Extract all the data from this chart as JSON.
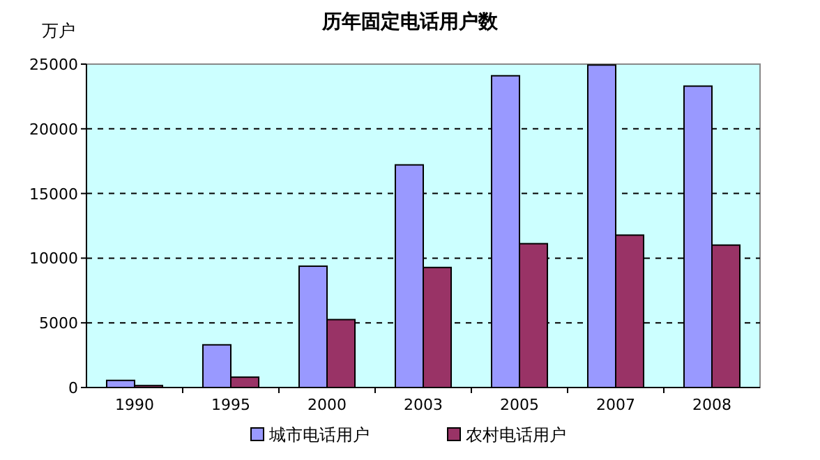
{
  "chart_data": {
    "type": "bar",
    "title": "历年固定电话用户数",
    "ylabel": "万户",
    "categories": [
      "1990",
      "1995",
      "2000",
      "2003",
      "2005",
      "2007",
      "2008"
    ],
    "series": [
      {
        "name": "城市电话用户",
        "color": "#9999ff",
        "values": [
          550,
          3300,
          9380,
          17210,
          24100,
          24930,
          23300
        ]
      },
      {
        "name": "农村电话用户",
        "color": "#993366",
        "values": [
          150,
          800,
          5250,
          9280,
          11120,
          11780,
          11010
        ]
      }
    ],
    "ylim": [
      0,
      25000
    ],
    "yticks": [
      0,
      5000,
      10000,
      15000,
      20000,
      25000
    ],
    "grid": "y",
    "legend": "bottom"
  }
}
